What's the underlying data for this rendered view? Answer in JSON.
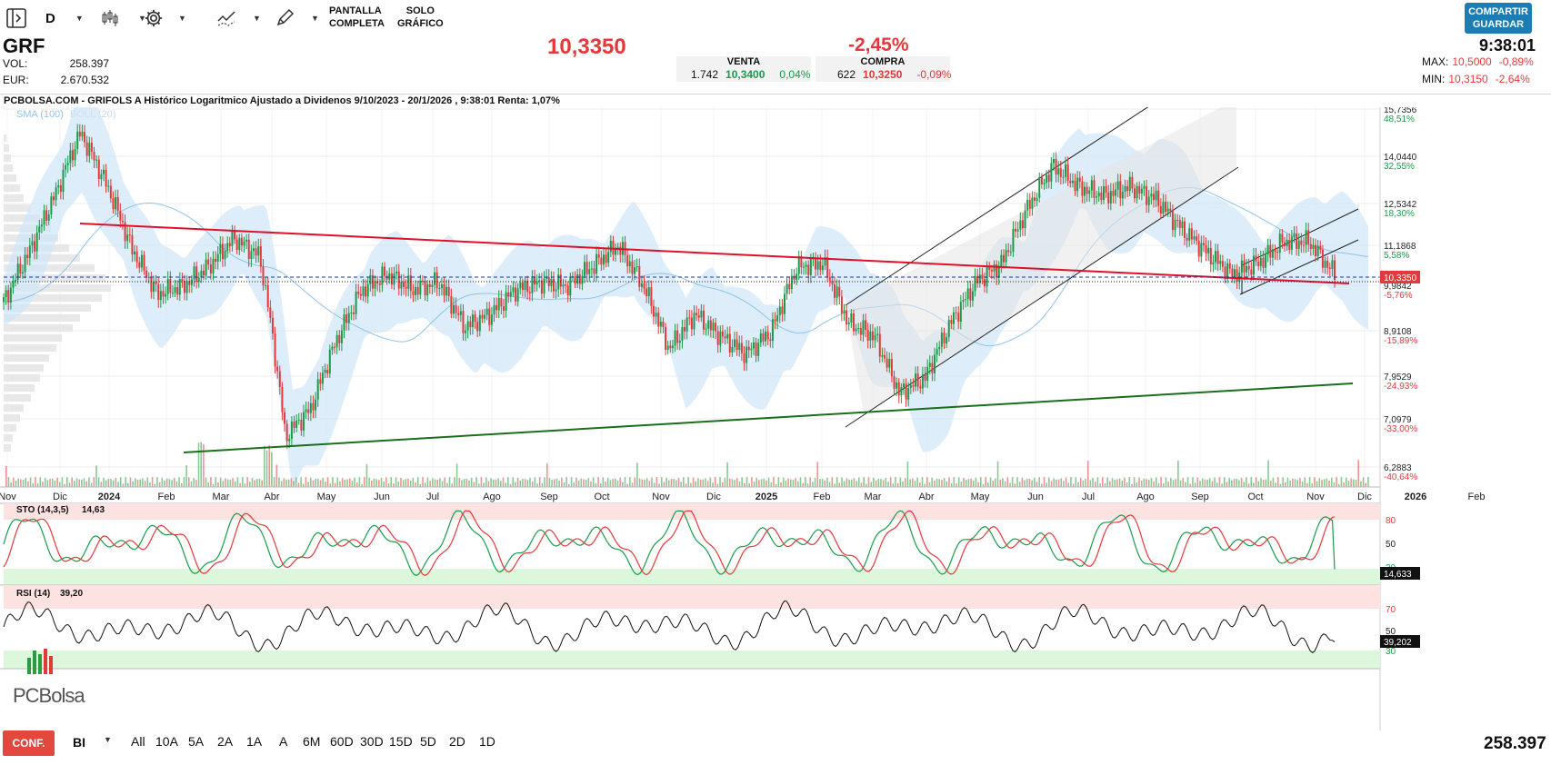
{
  "toolbar": {
    "interval": "D",
    "fullscreen_line1": "PANTALLA",
    "fullscreen_line2": "COMPLETA",
    "chartonly_line1": "SOLO",
    "chartonly_line2": "GRÁFICO",
    "share_line1": "COMPARTIR",
    "share_line2": "GUARDAR",
    "icons": [
      "sidebar-toggle-icon",
      "candlestick-icon",
      "gear-icon",
      "drawing-tools-icon",
      "pencil-icon"
    ]
  },
  "quote": {
    "ticker": "GRF",
    "price": "10,3350",
    "change_pct": "-2,45%",
    "time": "9:38:01",
    "vol_label": "VOL:",
    "vol_value": "258.397",
    "eur_label": "EUR:",
    "eur_value": "2.670.532",
    "sell": {
      "label": "VENTA",
      "qty": "1.742",
      "price": "10,3400",
      "pct": "0,04%"
    },
    "buy": {
      "label": "COMPRA",
      "qty": "622",
      "price": "10,3250",
      "pct": "-0,09%"
    },
    "max_label": "MAX:",
    "max_price": "10,5000",
    "max_pct": "-0,89%",
    "min_label": "MIN:",
    "min_price": "10,3150",
    "min_pct": "-2,64%"
  },
  "chart_title": "PCBOLSA.COM - GRIFOLS A Histórico Logaritmico Ajustado a Dividenos 9/10/2023 - 20/1/2026 , 9:38:01 Renta: 1,07%",
  "indicator_legend": {
    "sma": "SMA (100)",
    "boll": "BOLL (20)"
  },
  "colors": {
    "up": "#1a9b4b",
    "down": "#e5383b",
    "trend_red": "#e0102a",
    "trend_green": "#1b6e1b",
    "boll_fill": "#cfe6f7",
    "button_red": "#e2483d",
    "share_blue": "#1b7db3"
  },
  "chart_data": {
    "type": "line",
    "scale": "log",
    "x_ticks": [
      "Nov",
      "Dic",
      "2024",
      "Feb",
      "Mar",
      "Abr",
      "May",
      "Jun",
      "Jul",
      "Ago",
      "Sep",
      "Oct",
      "Nov",
      "Dic",
      "2025",
      "Feb",
      "Mar",
      "Abr",
      "May",
      "Jun",
      "Jul",
      "Ago",
      "Sep",
      "Oct",
      "Nov",
      "Dic",
      "2026",
      "Feb"
    ],
    "y_ticks": [
      {
        "value": "15,7356",
        "pct": "48,51%"
      },
      {
        "value": "14,0440",
        "pct": "32,55%"
      },
      {
        "value": "12,5342",
        "pct": "18,30%"
      },
      {
        "value": "11,1868",
        "pct": "5,58%"
      },
      {
        "value": "9,9842",
        "pct": "-5,76%"
      },
      {
        "value": "8,9108",
        "pct": "-15,89%"
      },
      {
        "value": "7,9529",
        "pct": "-24,93%"
      },
      {
        "value": "7,0979",
        "pct": "-33,00%"
      },
      {
        "value": "6,2883",
        "pct": "-40,64%"
      }
    ],
    "last_price_label": "10,3350",
    "approx_close_series": [
      9.6,
      10.9,
      12.6,
      14.8,
      13.0,
      11.0,
      9.8,
      10.0,
      10.5,
      11.3,
      10.8,
      6.8,
      7.3,
      8.7,
      9.9,
      10.3,
      9.9,
      10.1,
      9.0,
      9.3,
      9.9,
      10.1,
      10.0,
      10.5,
      11.1,
      10.0,
      8.5,
      9.3,
      8.8,
      8.4,
      8.9,
      10.5,
      10.6,
      9.1,
      8.8,
      7.6,
      7.9,
      9.1,
      10.1,
      10.6,
      12.2,
      13.6,
      12.9,
      12.6,
      12.9,
      12.5,
      11.6,
      10.9,
      10.3,
      10.6,
      11.2,
      11.2,
      10.3
    ]
  },
  "stoch": {
    "label": "STO (14,3,5)",
    "value": "14,63",
    "badge": "14,633",
    "levels": [
      "80",
      "50",
      "20"
    ]
  },
  "rsi": {
    "label": "RSI (14)",
    "value": "39,20",
    "badge": "39,202",
    "levels": [
      "70",
      "50",
      "30"
    ]
  },
  "watermark": "PCBolsa",
  "bottom": {
    "config": "CONF.",
    "mode": "BI",
    "periods": [
      "All",
      "10A",
      "5A",
      "2A",
      "1A",
      "A",
      "6M",
      "60D",
      "30D",
      "15D",
      "5D",
      "2D",
      "1D"
    ],
    "volume_total": "258.397"
  }
}
